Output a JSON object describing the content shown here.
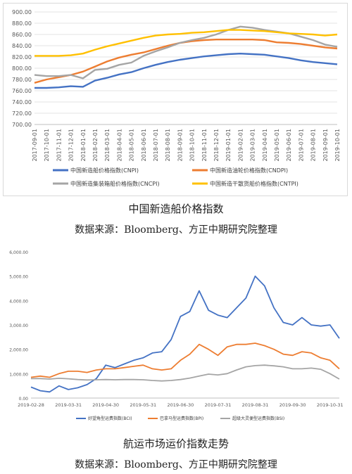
{
  "charts": [
    {
      "caption": "中国新造船价格指数",
      "source": "数据来源：Bloomberg、方正中期研究院整理"
    },
    {
      "caption": "航运市场运价指数走势",
      "source": "数据来源：Bloomberg、方正中期研究院整理"
    }
  ],
  "chart_data": [
    {
      "type": "line",
      "title": "",
      "grid": true,
      "legend_placement": "bottom",
      "ylim": [
        700,
        900
      ],
      "yticks": [
        "700.00",
        "720.00",
        "740.00",
        "760.00",
        "780.00",
        "800.00",
        "820.00",
        "840.00",
        "860.00",
        "880.00",
        "900.00"
      ],
      "x": [
        "2017-09-01",
        "2017-10-01",
        "2017-11-01",
        "2017-12-01",
        "2018-01-01",
        "2018-02-01",
        "2018-03-01",
        "2018-04-01",
        "2018-05-01",
        "2018-06-01",
        "2018-07-01",
        "2018-08-01",
        "2018-09-01",
        "2018-10-01",
        "2018-11-01",
        "2018-12-01",
        "2019-01-01",
        "2019-02-01",
        "2019-03-01",
        "2019-04-01",
        "2019-05-01",
        "2019-06-01",
        "2019-07-01",
        "2019-08-01",
        "2019-09-01",
        "2019-10-01"
      ],
      "series": [
        {
          "name": "中国新造船价格指数(CNPI)",
          "color": "#4472c4",
          "values": [
            765,
            765,
            766,
            768,
            767,
            778,
            783,
            789,
            793,
            800,
            806,
            811,
            815,
            818,
            821,
            823,
            825,
            826,
            825,
            824,
            821,
            818,
            814,
            811,
            809,
            807
          ]
        },
        {
          "name": "中国新造油轮价格指数(CNDPI)",
          "color": "#ed7d31",
          "values": [
            774,
            780,
            784,
            788,
            794,
            803,
            812,
            819,
            824,
            828,
            834,
            840,
            845,
            848,
            850,
            851,
            851,
            851,
            851,
            850,
            846,
            845,
            843,
            840,
            837,
            835
          ]
        },
        {
          "name": "中国新造集装箱船价格指数(CNCPI)",
          "color": "#a5a5a5",
          "values": [
            788,
            786,
            786,
            788,
            782,
            797,
            799,
            806,
            810,
            822,
            830,
            837,
            845,
            850,
            854,
            860,
            868,
            874,
            872,
            868,
            865,
            862,
            856,
            850,
            842,
            838
          ]
        },
        {
          "name": "中国新造干散货船价格指数(CNTPI)",
          "color": "#ffc000",
          "values": [
            822,
            822,
            822,
            823,
            826,
            833,
            839,
            844,
            849,
            854,
            858,
            860,
            861,
            863,
            864,
            866,
            868,
            868,
            867,
            866,
            864,
            862,
            861,
            860,
            858,
            860
          ]
        }
      ]
    },
    {
      "type": "line",
      "title": "",
      "grid": false,
      "legend_placement": "bottom",
      "ylim": [
        0,
        6000
      ],
      "yticks": [
        "0.00",
        "1,000.00",
        "2,000.00",
        "3,000.00",
        "4,000.00",
        "5,000.00",
        "6,000.00"
      ],
      "x": [
        "2019-02-28",
        "2019-03-07",
        "2019-03-14",
        "2019-03-21",
        "2019-03-31",
        "2019-04-07",
        "2019-04-14",
        "2019-04-21",
        "2019-04-30",
        "2019-05-07",
        "2019-05-14",
        "2019-05-21",
        "2019-05-31",
        "2019-06-07",
        "2019-06-14",
        "2019-06-21",
        "2019-06-30",
        "2019-07-07",
        "2019-07-14",
        "2019-07-21",
        "2019-07-31",
        "2019-08-07",
        "2019-08-14",
        "2019-08-21",
        "2019-08-31",
        "2019-09-07",
        "2019-09-14",
        "2019-09-21",
        "2019-09-30",
        "2019-10-07",
        "2019-10-14",
        "2019-10-21",
        "2019-10-31",
        "2019-11-07"
      ],
      "xticks": [
        "2019-02-28",
        "2019-03-31",
        "2019-04-30",
        "2019-05-31",
        "2019-06-30",
        "2019-07-31",
        "2019-08-31",
        "2019-09-30",
        "2019-10-31"
      ],
      "series": [
        {
          "name": "好望角型运费指数(BCI)",
          "color": "#4472c4",
          "values": [
            450,
            300,
            250,
            500,
            350,
            420,
            550,
            800,
            1350,
            1250,
            1400,
            1550,
            1650,
            1850,
            1900,
            2400,
            3350,
            3550,
            4400,
            3600,
            3400,
            3300,
            3700,
            4100,
            5000,
            4600,
            3700,
            3100,
            3000,
            3300,
            3000,
            2950,
            3000,
            2450
          ]
        },
        {
          "name": "巴拿马型运费指数(BPI)",
          "color": "#ed7d31",
          "values": [
            850,
            900,
            850,
            1000,
            1100,
            1100,
            1050,
            1150,
            1200,
            1200,
            1250,
            1300,
            1350,
            1200,
            1150,
            1200,
            1550,
            1800,
            2200,
            2000,
            1750,
            2100,
            2200,
            2200,
            2250,
            2150,
            2000,
            1800,
            1750,
            1900,
            1850,
            1650,
            1550,
            1200
          ]
        },
        {
          "name": "超级大灵便型运费指数(BSI)",
          "color": "#a5a5a5",
          "values": [
            800,
            800,
            780,
            810,
            790,
            760,
            740,
            750,
            760,
            750,
            760,
            760,
            750,
            720,
            700,
            720,
            760,
            820,
            900,
            980,
            950,
            1000,
            1150,
            1280,
            1330,
            1350,
            1320,
            1280,
            1200,
            1200,
            1230,
            1180,
            1000,
            780
          ]
        }
      ]
    }
  ]
}
